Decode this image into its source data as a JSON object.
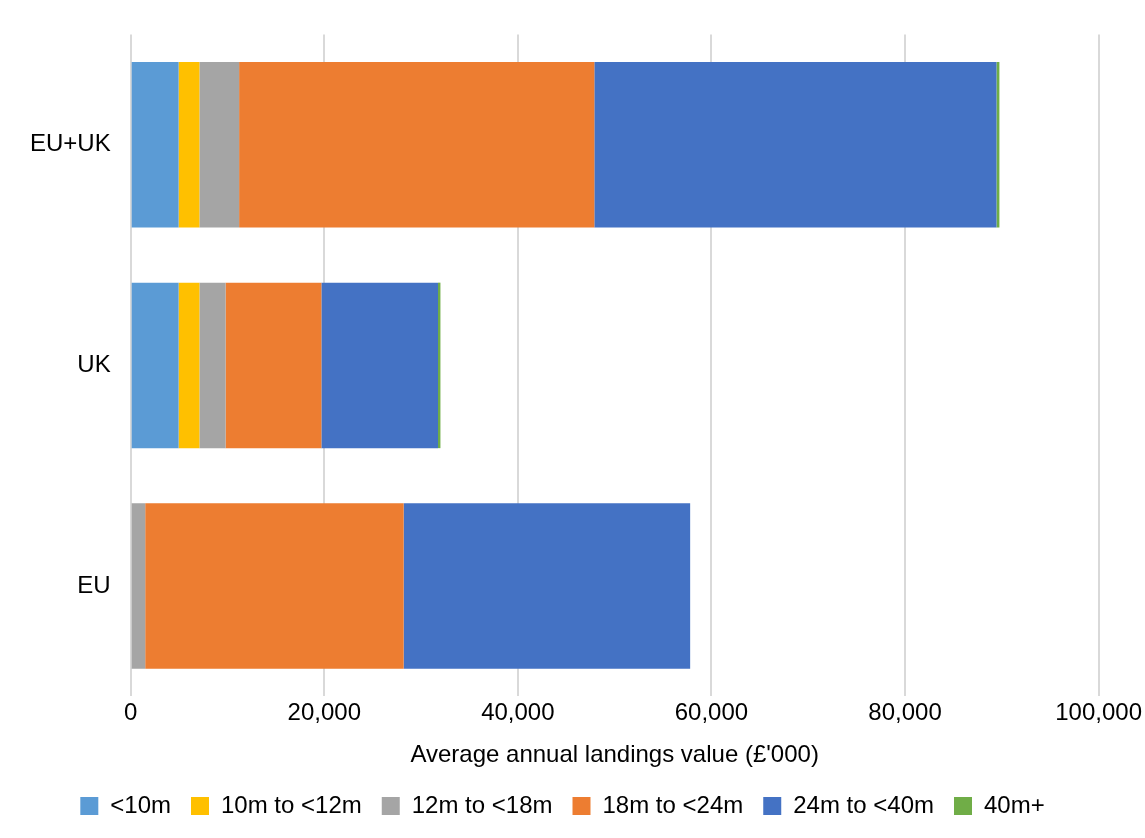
{
  "chart_data": {
    "type": "bar",
    "orientation": "horizontal",
    "stacked": true,
    "xlabel": "Average annual landings value (£'000)",
    "categories": [
      "EU+UK",
      "UK",
      "EU"
    ],
    "series": [
      {
        "name": "<10m",
        "color": "#5b9bd5",
        "values": [
          4950,
          4950,
          0
        ]
      },
      {
        "name": "10m to <12m",
        "color": "#ffc000",
        "values": [
          2150,
          2150,
          0
        ]
      },
      {
        "name": "12m to <18m",
        "color": "#a5a5a5",
        "values": [
          4100,
          2700,
          1500
        ]
      },
      {
        "name": "18m to <24m",
        "color": "#ed7d31",
        "values": [
          36700,
          9900,
          26700
        ]
      },
      {
        "name": "24m to <40m",
        "color": "#4472c4",
        "values": [
          41550,
          12050,
          29600
        ]
      },
      {
        "name": "40m+",
        "color": "#70ad47",
        "values": [
          300,
          250,
          0
        ]
      }
    ],
    "xlim": [
      0,
      100000
    ],
    "xticks": [
      {
        "value": 0,
        "label": "0"
      },
      {
        "value": 20000,
        "label": "20,000"
      },
      {
        "value": 40000,
        "label": "40,000"
      },
      {
        "value": 60000,
        "label": "60,000"
      },
      {
        "value": 80000,
        "label": "80,000"
      },
      {
        "value": 100000,
        "label": "100,000"
      }
    ],
    "grid": "x",
    "legend": "bottom"
  }
}
